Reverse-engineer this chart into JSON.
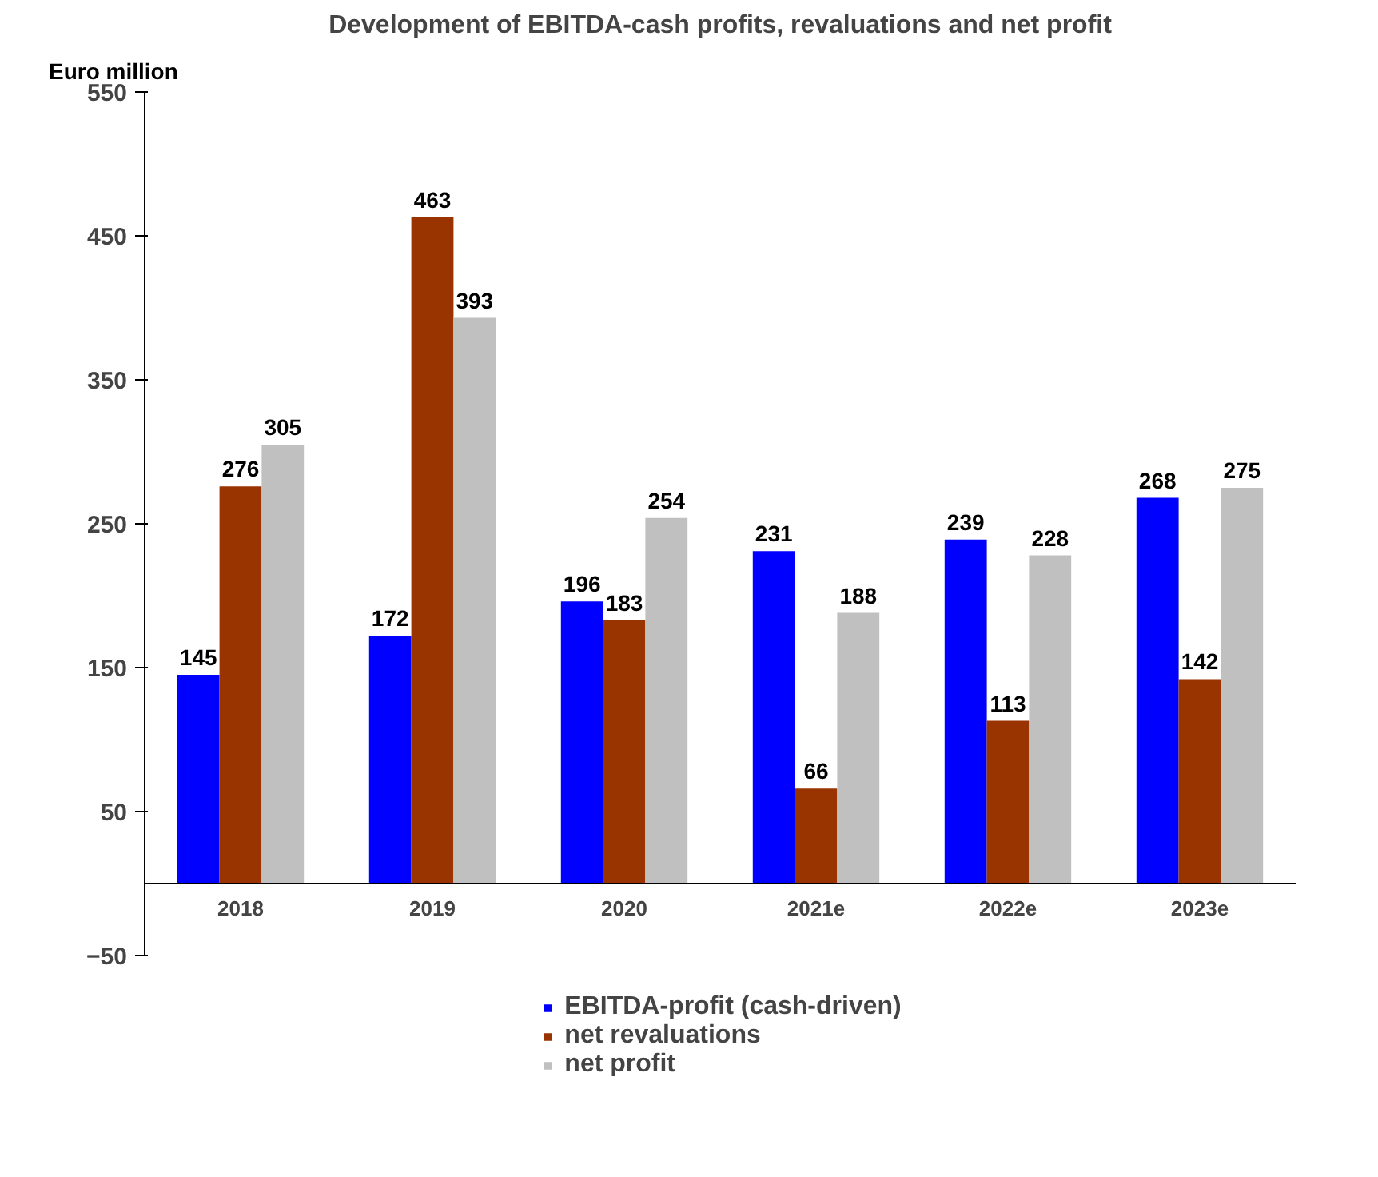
{
  "chart_data": {
    "type": "bar",
    "title": "Development of EBITDA-cash profits, revaluations and net profit",
    "ylabel": "Euro million",
    "categories": [
      "2018",
      "2019",
      "2020",
      "2021e",
      "2022e",
      "2023e"
    ],
    "series": [
      {
        "name": "EBITDA-profit (cash-driven)",
        "color": "#0000ff",
        "values": [
          145,
          172,
          196,
          231,
          239,
          268
        ]
      },
      {
        "name": "net revaluations",
        "color": "#993300",
        "values": [
          276,
          463,
          183,
          66,
          113,
          142
        ]
      },
      {
        "name": "net profit",
        "color": "#c0c0c0",
        "values": [
          305,
          393,
          254,
          188,
          228,
          275
        ]
      }
    ],
    "ylim": [
      -50,
      550
    ],
    "yticks": [
      -50,
      50,
      150,
      250,
      350,
      450,
      550
    ],
    "grid": false,
    "legend": "bottom",
    "data_labels": true
  }
}
